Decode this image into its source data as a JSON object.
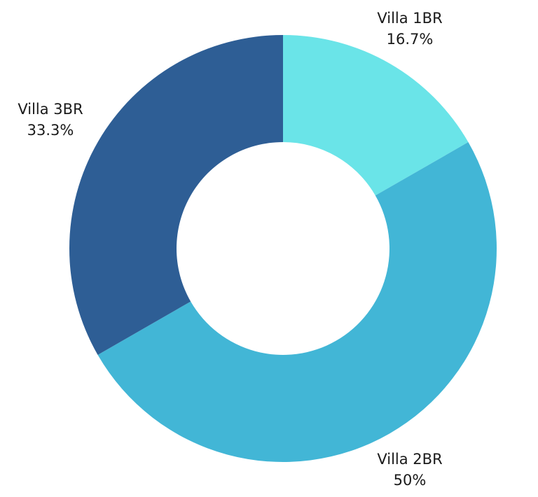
{
  "chart_data": {
    "type": "pie",
    "donut": true,
    "title": "",
    "slices": [
      {
        "label": "Villa 1BR",
        "percent_label": "16.7%",
        "value": 16.7,
        "color": "#6ae4e8"
      },
      {
        "label": "Villa 2BR",
        "percent_label": "50%",
        "value": 50,
        "color": "#42b6d6"
      },
      {
        "label": "Villa 3BR",
        "percent_label": "33.3%",
        "value": 33.3,
        "color": "#2e5e95"
      }
    ],
    "legend": "none"
  }
}
